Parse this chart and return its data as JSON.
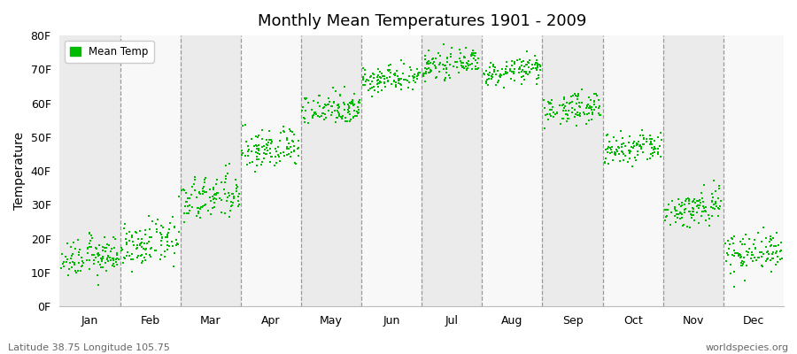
{
  "title": "Monthly Mean Temperatures 1901 - 2009",
  "ylabel": "Temperature",
  "subtitle_left": "Latitude 38.75 Longitude 105.75",
  "subtitle_right": "worldspecies.org",
  "months": [
    "Jan",
    "Feb",
    "Mar",
    "Apr",
    "May",
    "Jun",
    "Jul",
    "Aug",
    "Sep",
    "Oct",
    "Nov",
    "Dec"
  ],
  "ylim": [
    0,
    80
  ],
  "yticks": [
    0,
    10,
    20,
    30,
    40,
    50,
    60,
    70,
    80
  ],
  "ytick_labels": [
    "0F",
    "10F",
    "20F",
    "30F",
    "40F",
    "50F",
    "60F",
    "70F",
    "80F"
  ],
  "dot_color": "#00BB00",
  "bg_color_odd": "#ebebeb",
  "bg_color_even": "#f8f8f8",
  "legend_label": "Mean Temp",
  "n_years": 109,
  "monthly_means_start": [
    13.5,
    17.0,
    30.5,
    45.5,
    57.5,
    66.5,
    70.5,
    68.5,
    57.5,
    45.5,
    27.5,
    15.0
  ],
  "monthly_means_end": [
    15.5,
    20.0,
    33.5,
    47.5,
    59.5,
    68.5,
    72.5,
    70.5,
    59.5,
    47.5,
    30.5,
    17.5
  ],
  "monthly_stds": [
    2.8,
    3.2,
    3.5,
    3.0,
    2.5,
    2.0,
    1.8,
    1.8,
    2.2,
    2.5,
    2.8,
    3.0
  ]
}
